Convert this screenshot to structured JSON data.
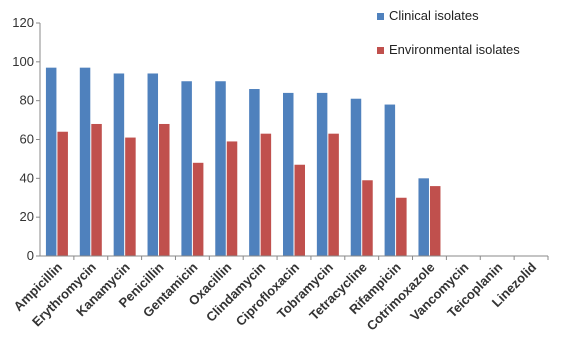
{
  "chart_data": {
    "type": "bar",
    "title": "",
    "xlabel": "",
    "ylabel": "",
    "ylim": [
      0,
      120
    ],
    "yticks": [
      0,
      20,
      40,
      60,
      80,
      100,
      120
    ],
    "grid": false,
    "legend_position": "top-right",
    "categories": [
      "Ampicillin",
      "Erythromycin",
      "Kanamycin",
      "Penicillin",
      "Gentamicin",
      "Oxacillin",
      "Clindamycin",
      "Ciprofloxacin",
      "Tobramycin",
      "Tetracycline",
      "Rifampicin",
      "Cotrimoxazole",
      "Vancomycin",
      "Teicoplanin",
      "Linezolid"
    ],
    "series": [
      {
        "name": "Clinical isolates",
        "color": "#4F81BD",
        "values": [
          97,
          97,
          94,
          94,
          90,
          90,
          86,
          84,
          84,
          81,
          78,
          40,
          0,
          0,
          0
        ]
      },
      {
        "name": "Environmental isolates",
        "color": "#C0504D",
        "values": [
          64,
          68,
          61,
          68,
          48,
          59,
          63,
          47,
          63,
          39,
          30,
          36,
          0,
          0,
          0
        ]
      }
    ]
  }
}
